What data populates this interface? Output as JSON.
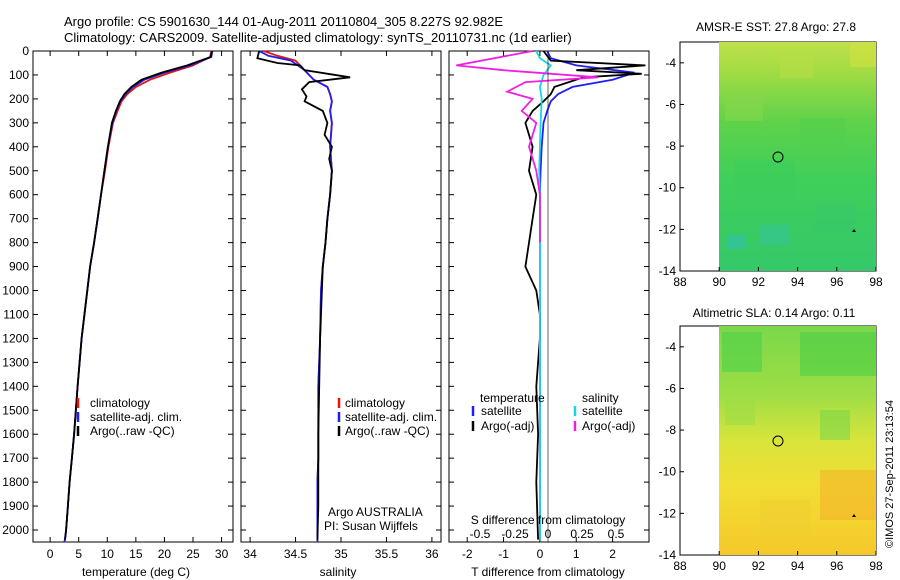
{
  "header": {
    "line1": "Argo profile: CS 5901630_144 01-Aug-2011 20110804_305 8.227S 92.982E",
    "line2": "Climatology: CARS2009. Satellite-adjusted climatology: synTS_20110731.nc (1d earlier)"
  },
  "depth_ticks": [
    "0",
    "100",
    "200",
    "300",
    "400",
    "500",
    "600",
    "700",
    "800",
    "900",
    "1000",
    "1100",
    "1200",
    "1300",
    "1400",
    "1500",
    "1600",
    "1700",
    "1800",
    "1900",
    "2000"
  ],
  "colors": {
    "clim": "#e8150f",
    "sat": "#1f1ff2",
    "argo": "#000000",
    "sat_s": "#12d8e8",
    "argo_s": "#f020e0"
  },
  "chart_data": [
    {
      "type": "line",
      "xlabel": "temperature (deg C)",
      "xticks": [
        "0",
        "5",
        "10",
        "15",
        "20",
        "25",
        "30"
      ],
      "xlim": [
        -3,
        32
      ],
      "ylim": [
        0,
        2050
      ],
      "legend": [
        "climatology",
        "satellite-adj. clim.",
        "Argo(..raw -QC)"
      ],
      "series": [
        {
          "name": "climatology",
          "x": [
            28.2,
            28.0,
            25.0,
            21.0,
            17.5,
            15.0,
            13.5,
            12.5,
            11.8,
            11.0,
            10.2,
            9.6,
            8.9,
            8.3,
            7.7,
            7.0,
            6.5,
            5.5,
            4.8,
            4.2,
            3.8,
            3.4,
            3.1,
            2.8,
            2.6,
            2.5
          ],
          "y": [
            0,
            25,
            60,
            90,
            120,
            150,
            180,
            210,
            250,
            300,
            400,
            500,
            600,
            700,
            800,
            900,
            1000,
            1200,
            1400,
            1600,
            1700,
            1800,
            1900,
            2000,
            2040,
            2050
          ]
        },
        {
          "name": "satellite-adj. clim.",
          "x": [
            28.4,
            28.2,
            24.5,
            20.0,
            16.5,
            14.5,
            13.2,
            12.3,
            11.6,
            10.9,
            10.1,
            9.5,
            8.9,
            8.3,
            7.7,
            7.0,
            6.5,
            5.5,
            4.8,
            4.2,
            3.8,
            3.4,
            3.1,
            2.8,
            2.6,
            2.5
          ],
          "y": [
            0,
            25,
            60,
            90,
            120,
            150,
            180,
            210,
            250,
            300,
            400,
            500,
            600,
            700,
            800,
            900,
            1000,
            1200,
            1400,
            1600,
            1700,
            1800,
            1900,
            2000,
            2040,
            2050
          ]
        },
        {
          "name": "Argo(..raw -QC)",
          "x": [
            28.3,
            28.1,
            24.0,
            19.5,
            16.0,
            14.2,
            13.0,
            12.2,
            11.5,
            10.8,
            10.1,
            9.5,
            8.9,
            8.3,
            7.7,
            7.0,
            6.5,
            5.5,
            4.8,
            4.2,
            3.8,
            3.4,
            3.1,
            2.8,
            2.6
          ],
          "y": [
            0,
            25,
            60,
            90,
            120,
            150,
            180,
            210,
            250,
            300,
            400,
            500,
            600,
            700,
            800,
            900,
            1000,
            1200,
            1400,
            1600,
            1700,
            1800,
            1900,
            2000,
            2040
          ]
        }
      ]
    },
    {
      "type": "line",
      "xlabel": "salinity",
      "xticks": [
        "34",
        "34.5",
        "35",
        "35.5",
        "36"
      ],
      "xlim": [
        33.9,
        36.1
      ],
      "ylim": [
        0,
        2050
      ],
      "legend": [
        "climatology",
        "satellite-adj. clim.",
        "Argo(..raw -QC)"
      ],
      "annotation": [
        "Argo AUSTRALIA",
        "PI: Susan Wijffels"
      ],
      "series": [
        {
          "name": "climatology",
          "x": [
            34.15,
            34.3,
            34.5,
            34.6,
            34.7,
            34.85,
            34.88,
            34.9,
            34.88,
            34.9,
            34.88,
            34.9,
            34.88,
            34.85,
            34.83,
            34.8,
            34.78,
            34.77,
            34.76,
            34.75,
            34.75,
            34.75,
            34.75,
            34.74,
            34.74,
            34.74
          ],
          "y": [
            0,
            20,
            40,
            80,
            120,
            150,
            180,
            210,
            250,
            300,
            400,
            500,
            600,
            700,
            800,
            900,
            1000,
            1200,
            1300,
            1400,
            1500,
            1600,
            1700,
            1800,
            1900,
            2050
          ]
        },
        {
          "name": "satellite-adj. clim.",
          "x": [
            34.1,
            34.2,
            34.45,
            34.6,
            34.7,
            34.85,
            34.88,
            34.9,
            34.88,
            34.9,
            34.88,
            34.9,
            34.88,
            34.85,
            34.83,
            34.8,
            34.78,
            34.77,
            34.76,
            34.75,
            34.75,
            34.75,
            34.75,
            34.74,
            34.74,
            34.74
          ],
          "y": [
            0,
            20,
            40,
            80,
            120,
            150,
            180,
            210,
            250,
            300,
            400,
            500,
            600,
            700,
            800,
            900,
            1000,
            1200,
            1300,
            1400,
            1500,
            1600,
            1700,
            1800,
            1900,
            2050
          ]
        },
        {
          "name": "Argo(..raw -QC)",
          "x": [
            34.1,
            34.08,
            34.3,
            34.55,
            34.6,
            35.1,
            34.65,
            34.57,
            34.62,
            34.6,
            34.8,
            34.85,
            34.82,
            34.9,
            34.87,
            34.9,
            34.88,
            34.85,
            34.83,
            34.8,
            34.79,
            34.78,
            34.77,
            34.76,
            34.75,
            34.75,
            34.75,
            34.74
          ],
          "y": [
            0,
            30,
            50,
            60,
            80,
            110,
            130,
            160,
            190,
            210,
            250,
            300,
            350,
            400,
            450,
            500,
            600,
            700,
            800,
            900,
            1000,
            1100,
            1200,
            1400,
            1600,
            1800,
            1900,
            2040
          ]
        }
      ]
    },
    {
      "type": "line",
      "xlabel": "T difference from climatology",
      "xlabel_top": "S difference from climatology",
      "xticks": [
        "-2",
        "-1",
        "0",
        "1",
        "2"
      ],
      "xticks_top": [
        "-0.5",
        "-0.25",
        "0",
        "0.25",
        "0.5"
      ],
      "xlim": [
        -2.5,
        3.0
      ],
      "ylim": [
        0,
        2050
      ],
      "legend_groups": [
        {
          "title": "temperature",
          "items": [
            "satellite",
            "Argo(-adj)"
          ]
        },
        {
          "title": "salinity",
          "items": [
            "satellite",
            "Argo(-adj)"
          ]
        }
      ],
      "series": [
        {
          "name": "temperature satellite",
          "x": [
            0.2,
            0.3,
            1.0,
            2.6,
            2.0,
            0.9,
            0.5,
            0.3,
            0.2,
            0.1,
            0.05,
            0.02,
            0.0,
            0.0,
            0.0,
            0.0,
            0.0,
            0.0,
            0.0,
            0.0,
            0.0
          ],
          "y": [
            0,
            30,
            60,
            90,
            120,
            150,
            180,
            210,
            250,
            300,
            400,
            500,
            600,
            800,
            1000,
            1200,
            1400,
            1600,
            1800,
            1950,
            2040
          ]
        },
        {
          "name": "temperature Argo(-adj)",
          "x": [
            0.1,
            0.3,
            2.9,
            1.0,
            2.8,
            1.2,
            0.4,
            0.3,
            0.1,
            -0.2,
            -0.4,
            -0.2,
            -0.3,
            -0.1,
            -0.2,
            -0.3,
            -0.4,
            -0.1,
            0.0,
            0.0,
            -0.1,
            -0.05,
            -0.1,
            -0.05
          ],
          "y": [
            0,
            40,
            60,
            80,
            95,
            110,
            150,
            180,
            210,
            250,
            300,
            400,
            500,
            600,
            700,
            800,
            900,
            1000,
            1100,
            1200,
            1400,
            1600,
            1800,
            2040
          ]
        },
        {
          "name": "salinity satellite",
          "x": [
            -0.1,
            0.0,
            0.3,
            0.1,
            0.0,
            0.05,
            0.02,
            0.0,
            -0.02,
            0.0,
            0.0,
            0.0,
            0.0,
            0.0,
            0.0,
            0.0
          ],
          "y": [
            0,
            30,
            60,
            100,
            150,
            200,
            300,
            400,
            500,
            600,
            800,
            1000,
            1200,
            1500,
            1800,
            2040
          ]
        },
        {
          "name": "salinity Argo(-adj)",
          "x": [
            -0.2,
            -2.3,
            -1.0,
            1.6,
            -0.4,
            -0.9,
            -0.2,
            -0.5,
            -0.1,
            -0.3,
            -0.1,
            0.0,
            0.0,
            0.0
          ],
          "y": [
            0,
            60,
            80,
            110,
            130,
            170,
            200,
            250,
            300,
            400,
            500,
            600,
            700,
            800
          ]
        }
      ]
    },
    {
      "type": "heatmap",
      "title": "AMSR-E SST: 27.8 Argo: 27.8",
      "xticks": [
        "88",
        "90",
        "92",
        "94",
        "96",
        "98"
      ],
      "yticks": [
        "-4",
        "-6",
        "-8",
        "-10",
        "-12",
        "-14"
      ],
      "xlim": [
        88,
        98
      ],
      "ylim": [
        -14,
        -3
      ],
      "float_position": {
        "lon": 92.98,
        "lat": -8.23
      }
    },
    {
      "type": "heatmap",
      "title": "Altimetric SLA: 0.14 Argo: 0.11",
      "xticks": [
        "88",
        "90",
        "92",
        "94",
        "96",
        "98"
      ],
      "yticks": [
        "-4",
        "-6",
        "-8",
        "-10",
        "-12",
        "-14"
      ],
      "xlim": [
        88,
        98
      ],
      "ylim": [
        -14,
        -3
      ],
      "float_position": {
        "lon": 92.98,
        "lat": -8.23
      }
    }
  ],
  "footer_stamp": "©IMOS 27-Sep-2011 23:13:54"
}
